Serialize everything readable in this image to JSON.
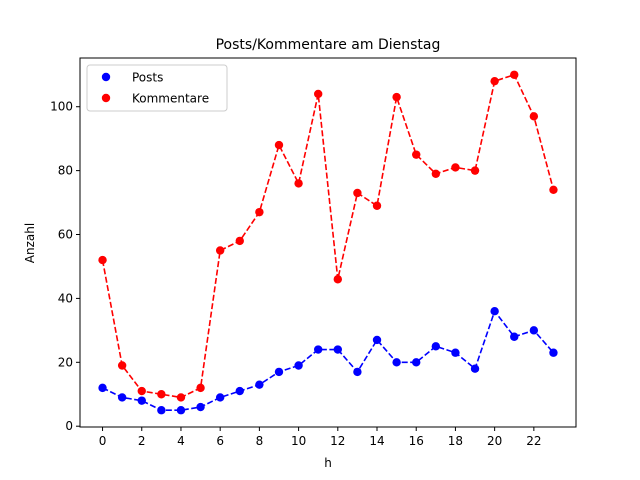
{
  "chart_data": {
    "type": "line",
    "title": "Posts/Kommentare am Dienstag",
    "xlabel": "h",
    "ylabel": "Anzahl",
    "x": [
      0,
      1,
      2,
      3,
      4,
      5,
      6,
      7,
      8,
      9,
      10,
      11,
      12,
      13,
      14,
      15,
      16,
      17,
      18,
      19,
      20,
      21,
      22,
      23
    ],
    "xlim": [
      -1.15,
      24.15
    ],
    "ylim": [
      -0.25,
      115.25
    ],
    "x_ticks": [
      0,
      2,
      4,
      6,
      8,
      10,
      12,
      14,
      16,
      18,
      20,
      22
    ],
    "y_ticks": [
      0,
      20,
      40,
      60,
      80,
      100
    ],
    "grid": false,
    "legend_position": "top-left",
    "series": [
      {
        "name": "Posts",
        "color": "#0000ff",
        "line_style": "dashed",
        "marker": "circle",
        "values": [
          12,
          9,
          8,
          5,
          5,
          6,
          9,
          11,
          13,
          17,
          19,
          24,
          24,
          17,
          27,
          20,
          20,
          25,
          23,
          18,
          36,
          28,
          30,
          23
        ]
      },
      {
        "name": "Kommentare",
        "color": "#ff0000",
        "line_style": "dashed",
        "marker": "circle",
        "values": [
          52,
          19,
          11,
          10,
          9,
          12,
          55,
          58,
          67,
          88,
          76,
          104,
          46,
          73,
          69,
          103,
          85,
          79,
          81,
          80,
          108,
          110,
          97,
          74
        ]
      }
    ]
  }
}
